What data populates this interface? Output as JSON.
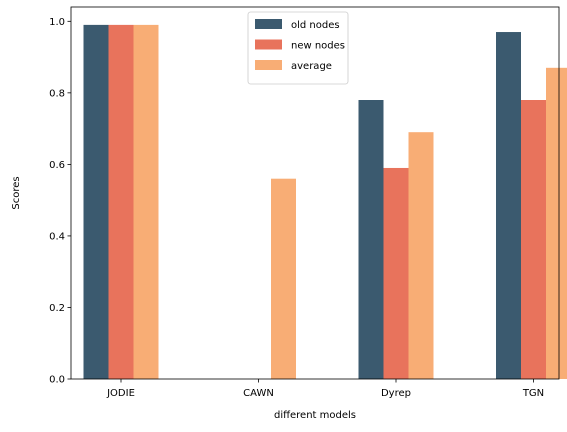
{
  "chart_data": {
    "type": "bar",
    "categories": [
      "JODIE",
      "CAWN",
      "Dyrep",
      "TGN"
    ],
    "series": [
      {
        "name": "old nodes",
        "values": [
          0.99,
          null,
          0.78,
          0.97
        ],
        "color": "#3b5a6f"
      },
      {
        "name": "new nodes",
        "values": [
          0.99,
          null,
          0.59,
          0.78
        ],
        "color": "#e8735c"
      },
      {
        "name": "average",
        "values": [
          0.99,
          0.56,
          0.69,
          0.87
        ],
        "color": "#f8ad75"
      }
    ],
    "xlabel": "different models",
    "ylabel": "Scores",
    "ylim": [
      0,
      1.04
    ],
    "yticks": [
      0.0,
      0.2,
      0.4,
      0.6,
      0.8,
      1.0
    ],
    "ytick_labels": [
      "0.0",
      "0.2",
      "0.4",
      "0.6",
      "0.8",
      "1.0"
    ],
    "grid": false,
    "legend_position": "top-center"
  }
}
